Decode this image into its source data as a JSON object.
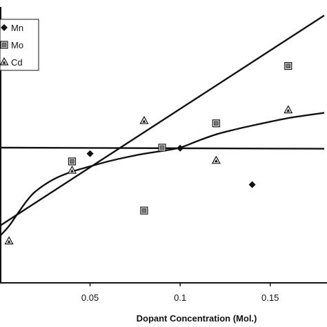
{
  "chart_data": {
    "type": "scatter",
    "xlabel": "Dopant Concentration (Mol.)",
    "ylabel": "",
    "xlim": [
      0.0,
      0.18
    ],
    "ylim": [
      0.0,
      1.0
    ],
    "x_ticks": [
      {
        "value": 0.05,
        "label": "0.05"
      },
      {
        "value": 0.1,
        "label": "0.1"
      },
      {
        "value": 0.15,
        "label": "0.15"
      }
    ],
    "grid": false,
    "legend_position": "top-left",
    "series": [
      {
        "name": "Mn",
        "marker": "diamond",
        "x": [
          0.05,
          0.1,
          0.14
        ],
        "y": [
          0.468,
          0.488,
          0.356
        ],
        "fit": {
          "kind": "linear",
          "x": [
            0.0,
            0.18
          ],
          "y": [
            0.49,
            0.486
          ]
        }
      },
      {
        "name": "Mo",
        "marker": "square-boxed",
        "x": [
          0.04,
          0.08,
          0.09,
          0.12,
          0.16
        ],
        "y": [
          0.44,
          0.262,
          0.49,
          0.578,
          0.786
        ],
        "fit": {
          "kind": "linear",
          "x": [
            0.0,
            0.18
          ],
          "y": [
            0.207,
            0.969
          ]
        }
      },
      {
        "name": "Cd",
        "marker": "triangle",
        "x": [
          0.005,
          0.04,
          0.08,
          0.12,
          0.16
        ],
        "y": [
          0.151,
          0.407,
          0.587,
          0.443,
          0.626
        ],
        "fit": {
          "kind": "curve",
          "x": [
            0.0,
            0.005,
            0.01,
            0.015,
            0.02,
            0.03,
            0.04,
            0.05,
            0.06,
            0.07,
            0.08,
            0.09,
            0.1,
            0.11,
            0.12,
            0.13,
            0.14,
            0.15,
            0.16,
            0.17,
            0.18
          ],
          "y": [
            0.17,
            0.206,
            0.253,
            0.298,
            0.333,
            0.376,
            0.403,
            0.422,
            0.44,
            0.455,
            0.468,
            0.478,
            0.49,
            0.515,
            0.538,
            0.555,
            0.57,
            0.584,
            0.597,
            0.607,
            0.616
          ]
        }
      }
    ]
  }
}
